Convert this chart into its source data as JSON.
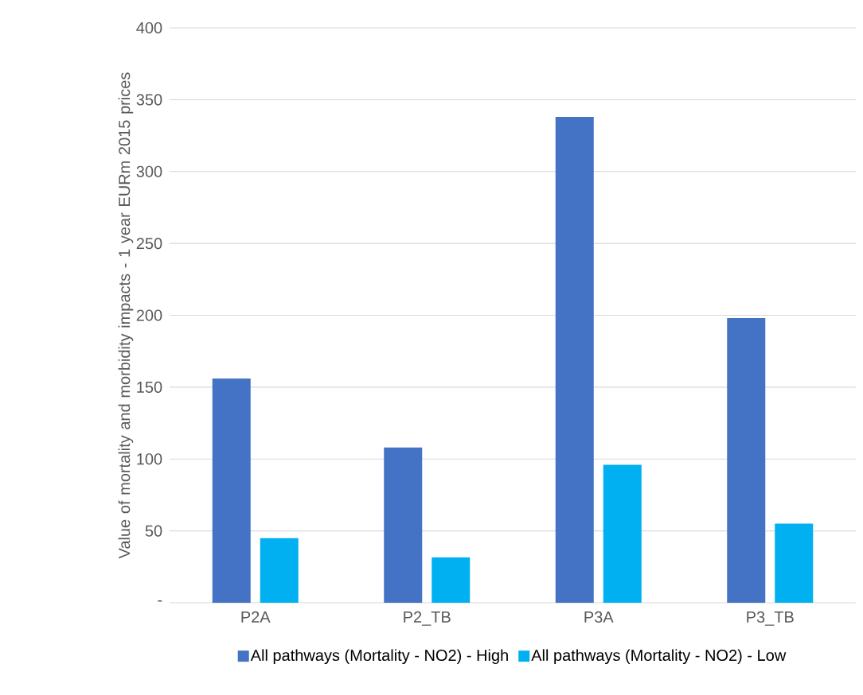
{
  "chart_data": {
    "type": "bar",
    "ylabel": "Value of mortality and morbidity impacts - 1 year EURm 2015 prices",
    "categories": [
      "P2A",
      "P2_TB",
      "P3A",
      "P3_TB"
    ],
    "series": [
      {
        "name": "All pathways (Mortality - NO2) - High",
        "color": "#4472c4",
        "values": [
          156,
          108,
          338,
          198
        ]
      },
      {
        "name": "All pathways (Mortality - NO2) - Low",
        "color": "#00b0f0",
        "values": [
          45,
          31.5,
          96,
          55
        ]
      }
    ],
    "ylim": [
      0,
      400
    ],
    "yticks": [
      {
        "value": 0,
        "label": "-"
      },
      50,
      100,
      150,
      200,
      250,
      300,
      350,
      400
    ],
    "grid": "y",
    "legend": "bottom"
  }
}
